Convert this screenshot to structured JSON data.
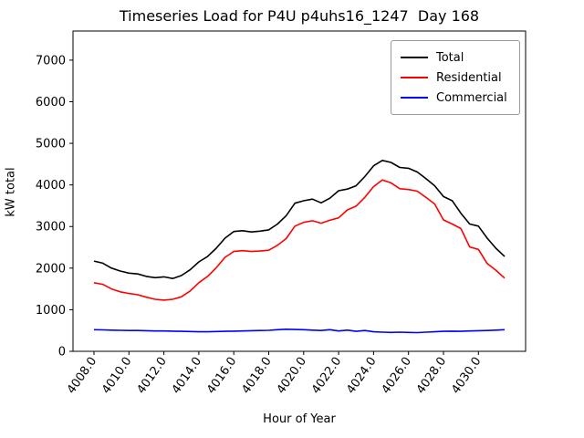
{
  "title": "Timeseries Load for P4U p4uhs16_1247  Day 168",
  "chart_data": {
    "type": "line",
    "title": "Timeseries Load for P4U p4uhs16_1247  Day 168",
    "xlabel": "Hour of Year",
    "ylabel": "kW total",
    "grid": false,
    "legend_position": "upper right",
    "xlim": [
      4006.8,
      4032.7
    ],
    "ylim": [
      0,
      7700
    ],
    "x_ticks": [
      4008,
      4010,
      4012,
      4014,
      4016,
      4018,
      4020,
      4022,
      4024,
      4026,
      4028,
      4030
    ],
    "x_tick_labels": [
      "4008.0",
      "4010.0",
      "4012.0",
      "4014.0",
      "4016.0",
      "4018.0",
      "4020.0",
      "4022.0",
      "4024.0",
      "4026.0",
      "4028.0",
      "4030.0"
    ],
    "y_ticks": [
      0,
      1000,
      2000,
      3000,
      4000,
      5000,
      6000,
      7000
    ],
    "y_tick_labels": [
      "0",
      "1000",
      "2000",
      "3000",
      "4000",
      "5000",
      "6000",
      "7000"
    ],
    "x": [
      4008.0,
      4008.5,
      4009.0,
      4009.5,
      4010.0,
      4010.5,
      4011.0,
      4011.5,
      4012.0,
      4012.5,
      4013.0,
      4013.5,
      4014.0,
      4014.5,
      4015.0,
      4015.5,
      4016.0,
      4016.5,
      4017.0,
      4017.5,
      4018.0,
      4018.5,
      4019.0,
      4019.5,
      4020.0,
      4020.5,
      4021.0,
      4021.5,
      4022.0,
      4022.5,
      4023.0,
      4023.5,
      4024.0,
      4024.5,
      4025.0,
      4025.5,
      4026.0,
      4026.5,
      4027.0,
      4027.5,
      4028.0,
      4028.5,
      4029.0,
      4029.5,
      4030.0,
      4030.5,
      4031.0,
      4031.5
    ],
    "series": [
      {
        "name": "Total",
        "color": "#000000",
        "values": [
          2170,
          2120,
          2000,
          1930,
          1880,
          1860,
          1800,
          1770,
          1790,
          1750,
          1820,
          1960,
          2150,
          2280,
          2480,
          2720,
          2880,
          2900,
          2870,
          2890,
          2920,
          3060,
          3260,
          3560,
          3620,
          3660,
          3570,
          3680,
          3860,
          3900,
          3980,
          4200,
          4460,
          4590,
          4540,
          4420,
          4400,
          4310,
          4150,
          3980,
          3720,
          3620,
          3320,
          3060,
          3010,
          2720,
          2480,
          2280
        ]
      },
      {
        "name": "Residential",
        "color": "#ff0000",
        "values": [
          1650,
          1610,
          1500,
          1430,
          1390,
          1360,
          1300,
          1250,
          1230,
          1250,
          1310,
          1450,
          1650,
          1800,
          2010,
          2260,
          2400,
          2420,
          2400,
          2410,
          2430,
          2550,
          2710,
          3010,
          3100,
          3140,
          3080,
          3150,
          3210,
          3400,
          3490,
          3700,
          3960,
          4120,
          4050,
          3910,
          3890,
          3850,
          3700,
          3540,
          3160,
          3060,
          2950,
          2510,
          2450,
          2110,
          1950,
          1760
        ]
      },
      {
        "name": "Commercial",
        "color": "#0000ff",
        "values": [
          520,
          515,
          510,
          505,
          500,
          500,
          495,
          490,
          490,
          485,
          480,
          475,
          470,
          470,
          475,
          480,
          485,
          490,
          495,
          500,
          505,
          520,
          530,
          525,
          520,
          510,
          500,
          520,
          490,
          510,
          480,
          500,
          470,
          460,
          455,
          460,
          455,
          450,
          460,
          470,
          480,
          485,
          480,
          490,
          495,
          500,
          510,
          520
        ]
      }
    ]
  }
}
